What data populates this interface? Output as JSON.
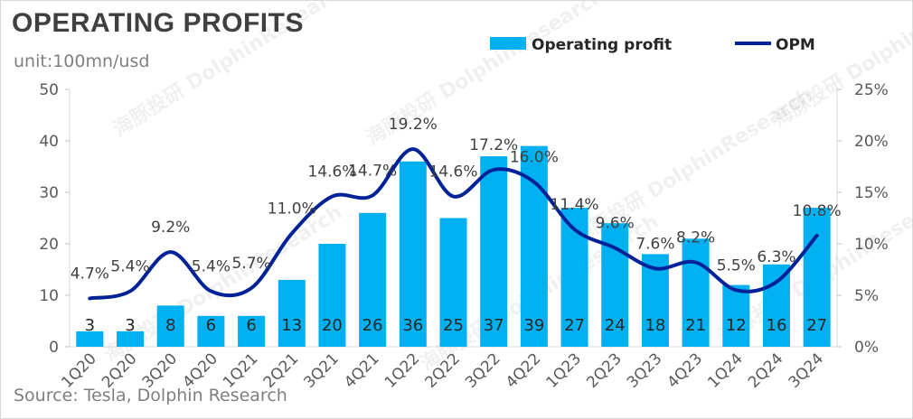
{
  "title": "OPERATING PROFITS",
  "unit_label": "unit:100mn/usd",
  "source": "Source: Tesla, Dolphin Research",
  "watermark": "海豚投研 DolphinResearch",
  "colors": {
    "bar": "#00b0f0",
    "line": "#002299",
    "text": "#404040",
    "axis": "#595959"
  },
  "chart_data": {
    "type": "bar",
    "title": "OPERATING PROFITS",
    "categories": [
      "1Q20",
      "2Q20",
      "3Q20",
      "4Q20",
      "1Q21",
      "2Q21",
      "3Q21",
      "4Q21",
      "1Q22",
      "2Q22",
      "3Q22",
      "4Q22",
      "1Q23",
      "2Q23",
      "3Q23",
      "4Q23",
      "1Q24",
      "2Q24",
      "3Q24"
    ],
    "series": [
      {
        "name": "Operating profit",
        "type": "bar",
        "axis": "left",
        "values": [
          3,
          3,
          8,
          6,
          6,
          13,
          20,
          26,
          36,
          25,
          37,
          39,
          27,
          24,
          18,
          21,
          12,
          16,
          27
        ],
        "labels": [
          "3",
          "3",
          "8",
          "6",
          "6",
          "13",
          "20",
          "26",
          "36",
          "25",
          "37",
          "39",
          "27",
          "24",
          "18",
          "21",
          "12",
          "16",
          "27"
        ]
      },
      {
        "name": "OPM",
        "type": "line",
        "axis": "right",
        "values": [
          4.7,
          5.4,
          9.2,
          5.4,
          5.7,
          11.0,
          14.6,
          14.7,
          19.2,
          14.6,
          17.2,
          16.0,
          11.4,
          9.6,
          7.6,
          8.2,
          5.5,
          6.3,
          10.8
        ],
        "labels": [
          "4.7%",
          "5.4%",
          "9.2%",
          "5.4%",
          "5.7%",
          "11.0%",
          "14.6%",
          "14.7%",
          "19.2%",
          "14.6%",
          "17.2%",
          "16.0%",
          "11.4%",
          "9.6%",
          "7.6%",
          "8.2%",
          "5.5%",
          "6.3%",
          "10.8%"
        ]
      }
    ],
    "ylim_left": [
      0,
      50
    ],
    "ylim_right": [
      0,
      25
    ],
    "yticks_left": [
      "0",
      "10",
      "20",
      "30",
      "40",
      "50"
    ],
    "yticks_right": [
      "0%",
      "5%",
      "10%",
      "15%",
      "20%",
      "25%"
    ],
    "grid": false,
    "legend": "top-right"
  }
}
